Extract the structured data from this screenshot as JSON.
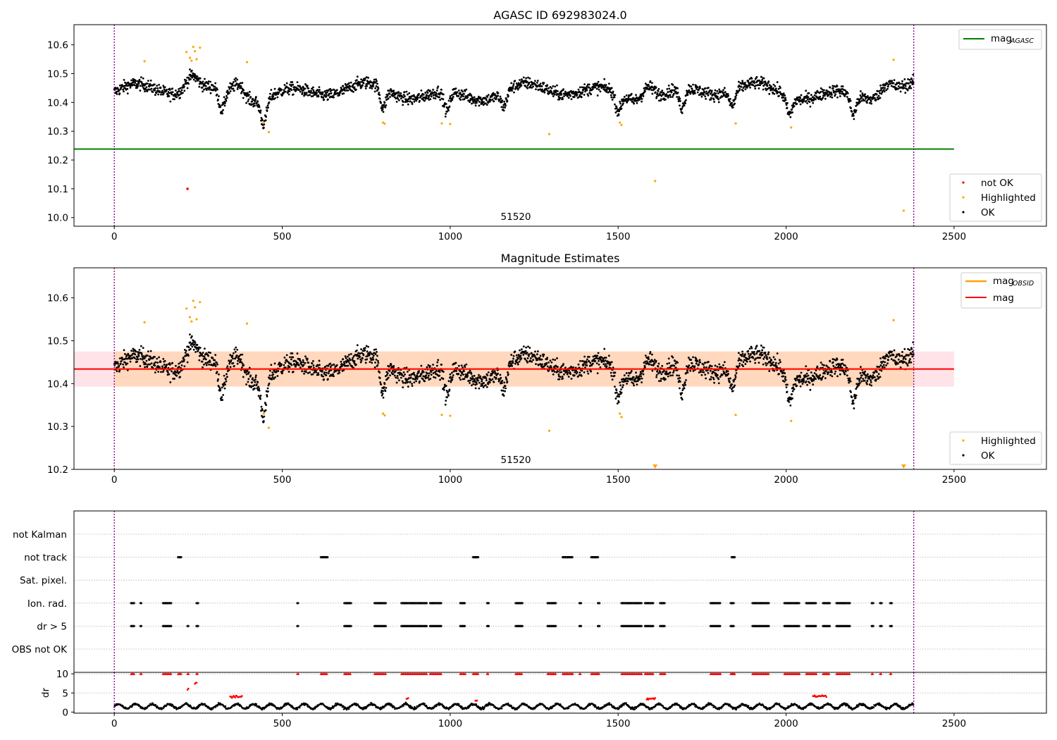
{
  "chart_data": [
    {
      "type": "scatter",
      "title": "AGASC ID 692983024.0",
      "xlim": [
        -120,
        2775
      ],
      "ylim": [
        9.97,
        10.67
      ],
      "xticks": [
        0,
        500,
        1000,
        1500,
        2000,
        2500
      ],
      "yticks": [
        10.0,
        10.1,
        10.2,
        10.3,
        10.4,
        10.5,
        10.6
      ],
      "ytick_labels": [
        "10.0",
        "10.1",
        "10.2",
        "10.3",
        "10.4",
        "10.5",
        "10.6"
      ],
      "obs_boundaries": [
        0,
        2380
      ],
      "obsid_annotation": {
        "text": "51520",
        "x": 1190
      },
      "agasc_mag": {
        "value": 10.238,
        "x_range": [
          -120,
          2500
        ],
        "color": "#008000"
      },
      "series": [
        {
          "name": "not OK",
          "color": "#ff0000",
          "points": [
            [
              218,
              10.1
            ]
          ]
        },
        {
          "name": "Highlighted",
          "color": "#ffa500",
          "points": [
            [
              90,
              10.543
            ],
            [
              215,
              10.575
            ],
            [
              225,
              10.555
            ],
            [
              230,
              10.545
            ],
            [
              235,
              10.593
            ],
            [
              240,
              10.578
            ],
            [
              245,
              10.55
            ],
            [
              255,
              10.59
            ],
            [
              395,
              10.54
            ],
            [
              445,
              10.33
            ],
            [
              460,
              10.297
            ],
            [
              800,
              10.33
            ],
            [
              805,
              10.326
            ],
            [
              975,
              10.327
            ],
            [
              1000,
              10.325
            ],
            [
              1295,
              10.29
            ],
            [
              1505,
              10.33
            ],
            [
              1510,
              10.322
            ],
            [
              1610,
              10.127
            ],
            [
              1850,
              10.327
            ],
            [
              2015,
              10.313
            ],
            [
              2320,
              10.548
            ],
            [
              2350,
              10.024
            ]
          ]
        },
        {
          "name": "OK",
          "color": "#000000",
          "baseline": 10.435,
          "spread": 0.035,
          "x_range": [
            0,
            2380
          ],
          "count": 2380,
          "dips": [
            [
              320,
              0.07
            ],
            [
              445,
              0.085
            ],
            [
              800,
              0.07
            ],
            [
              990,
              0.07
            ],
            [
              1160,
              0.05
            ],
            [
              1500,
              0.06
            ],
            [
              1690,
              0.07
            ],
            [
              1840,
              0.05
            ],
            [
              2010,
              0.06
            ],
            [
              2200,
              0.07
            ]
          ],
          "bumps": [
            [
              230,
              0.05
            ],
            [
              370,
              0.05
            ],
            [
              1590,
              0.05
            ],
            [
              2300,
              0.04
            ]
          ]
        }
      ],
      "legend_line": {
        "label": "mag",
        "sub": "AGASC",
        "color": "#008000"
      },
      "legend_points": [
        "not OK",
        "Highlighted",
        "OK"
      ]
    },
    {
      "type": "scatter",
      "title": "Magnitude Estimates",
      "xlim": [
        -120,
        2775
      ],
      "ylim": [
        10.2,
        10.67
      ],
      "xticks": [
        0,
        500,
        1000,
        1500,
        2000,
        2500
      ],
      "yticks": [
        10.2,
        10.3,
        10.4,
        10.5,
        10.6
      ],
      "ytick_labels": [
        "10.2",
        "10.3",
        "10.4",
        "10.5",
        "10.6"
      ],
      "obs_boundaries": [
        0,
        2380
      ],
      "obsid_annotation": {
        "text": "51520",
        "x": 1190
      },
      "mag": {
        "value": 10.434,
        "x_range": [
          -120,
          2500
        ],
        "color": "#ff0000"
      },
      "mag_band": {
        "low": 10.393,
        "high": 10.475,
        "color": "#ffc0cb"
      },
      "mag_obsid": {
        "value": 10.434,
        "low": 10.393,
        "high": 10.475,
        "x_range": [
          0,
          2380
        ],
        "color": "#ffa500"
      },
      "off_scale_markers": [
        1610,
        2350
      ],
      "legend_lines": [
        {
          "label": "mag",
          "sub": "OBSID",
          "color": "#ffa500"
        },
        {
          "label": "mag",
          "sub": "",
          "color": "#ff0000"
        }
      ],
      "legend_points": [
        "Highlighted",
        "OK"
      ]
    },
    {
      "type": "scatter",
      "title": "",
      "xlim": [
        -120,
        2775
      ],
      "categories": [
        "not Kalman",
        "not track",
        "Sat. pixel.",
        "Ion. rad.",
        "dr > 5",
        "OBS not OK"
      ],
      "flag_ranges": {
        "not track": [
          [
            190,
            200
          ],
          [
            615,
            635
          ],
          [
            1068,
            1085
          ],
          [
            1335,
            1365
          ],
          [
            1420,
            1440
          ],
          [
            1838,
            1848
          ]
        ],
        "Ion. rad.": [
          [
            50,
            60
          ],
          [
            78,
            82
          ],
          [
            145,
            170
          ],
          [
            245,
            250
          ],
          [
            545,
            548
          ],
          [
            685,
            705
          ],
          [
            775,
            810
          ],
          [
            855,
            930
          ],
          [
            940,
            975
          ],
          [
            1030,
            1045
          ],
          [
            1110,
            1115
          ],
          [
            1195,
            1215
          ],
          [
            1290,
            1315
          ],
          [
            1385,
            1390
          ],
          [
            1440,
            1445
          ],
          [
            1510,
            1570
          ],
          [
            1580,
            1605
          ],
          [
            1625,
            1640
          ],
          [
            1775,
            1805
          ],
          [
            1835,
            1845
          ],
          [
            1900,
            1950
          ],
          [
            1995,
            2040
          ],
          [
            2060,
            2090
          ],
          [
            2110,
            2130
          ],
          [
            2150,
            2190
          ],
          [
            2255,
            2260
          ],
          [
            2280,
            2285
          ],
          [
            2310,
            2315
          ]
        ],
        "dr > 5": [
          [
            50,
            60
          ],
          [
            78,
            82
          ],
          [
            145,
            170
          ],
          [
            218,
            222
          ],
          [
            245,
            250
          ],
          [
            545,
            548
          ],
          [
            685,
            705
          ],
          [
            775,
            810
          ],
          [
            855,
            930
          ],
          [
            940,
            975
          ],
          [
            1030,
            1045
          ],
          [
            1110,
            1115
          ],
          [
            1195,
            1215
          ],
          [
            1290,
            1315
          ],
          [
            1385,
            1390
          ],
          [
            1440,
            1445
          ],
          [
            1510,
            1570
          ],
          [
            1580,
            1605
          ],
          [
            1625,
            1640
          ],
          [
            1775,
            1805
          ],
          [
            1835,
            1845
          ],
          [
            1900,
            1950
          ],
          [
            1995,
            2040
          ],
          [
            2060,
            2090
          ],
          [
            2110,
            2130
          ],
          [
            2150,
            2190
          ],
          [
            2255,
            2260
          ],
          [
            2280,
            2285
          ],
          [
            2310,
            2315
          ]
        ]
      }
    },
    {
      "type": "scatter",
      "title": "",
      "xlim": [
        -120,
        2775
      ],
      "ylim": [
        -0.3,
        10.4
      ],
      "xticks": [
        0,
        500,
        1000,
        1500,
        2000,
        2500
      ],
      "yticks": [
        0,
        5,
        10
      ],
      "ytick_labels": [
        "0",
        "5",
        "10"
      ],
      "ylabel": "dr",
      "dr_baseline": 1.5,
      "dr_clusters": [
        [
          345,
          380,
          4.0
        ],
        [
          1585,
          1610,
          3.5
        ],
        [
          2080,
          2120,
          4.2
        ],
        [
          218,
          222,
          6.0
        ],
        [
          240,
          245,
          7.5
        ],
        [
          870,
          875,
          3.5
        ],
        [
          1075,
          1080,
          3.0
        ]
      ],
      "capped_markers_y": 10
    }
  ]
}
